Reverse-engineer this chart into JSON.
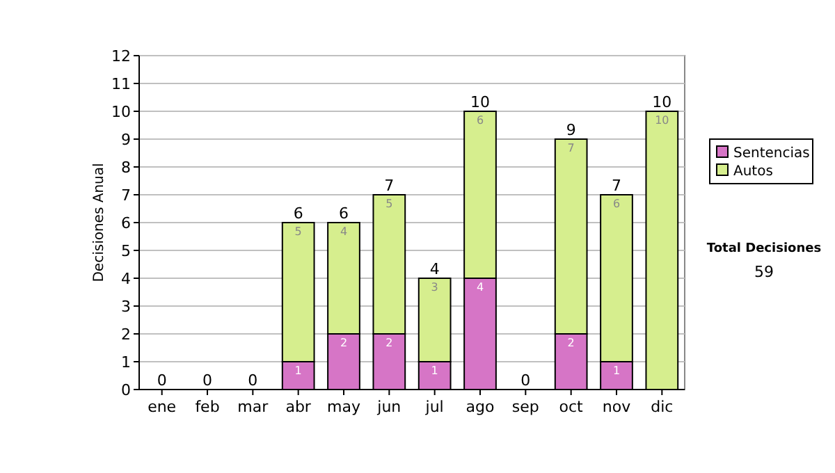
{
  "chart_data": {
    "type": "bar",
    "stacked": true,
    "ylabel": "Decisiones Anual",
    "categories": [
      "ene",
      "feb",
      "mar",
      "abr",
      "may",
      "jun",
      "jul",
      "ago",
      "sep",
      "oct",
      "nov",
      "dic"
    ],
    "series": [
      {
        "name": "Sentencias",
        "color": "#d675c6",
        "values": [
          0,
          0,
          0,
          1,
          2,
          2,
          1,
          4,
          0,
          2,
          1,
          0
        ],
        "value_labels": [
          null,
          null,
          null,
          "1",
          "2",
          "2",
          "1",
          "4",
          null,
          "2",
          "1",
          null
        ]
      },
      {
        "name": "Autos",
        "color": "#d6ee8e",
        "values": [
          0,
          0,
          0,
          5,
          4,
          5,
          3,
          6,
          0,
          7,
          6,
          10
        ],
        "value_labels": [
          null,
          null,
          null,
          "5",
          "4",
          "5",
          "3",
          "6",
          null,
          "7",
          "6",
          "10"
        ]
      }
    ],
    "totals": [
      "0",
      "0",
      "0",
      "6",
      "6",
      "7",
      "4",
      "10",
      "0",
      "9",
      "7",
      "10"
    ],
    "ylim": [
      0,
      12
    ],
    "yticks": [
      0,
      1,
      2,
      3,
      4,
      5,
      6,
      7,
      8,
      9,
      10,
      11,
      12
    ],
    "grid": "y",
    "legend": "right",
    "annotations": [
      "Total Decisiones",
      "59"
    ]
  }
}
